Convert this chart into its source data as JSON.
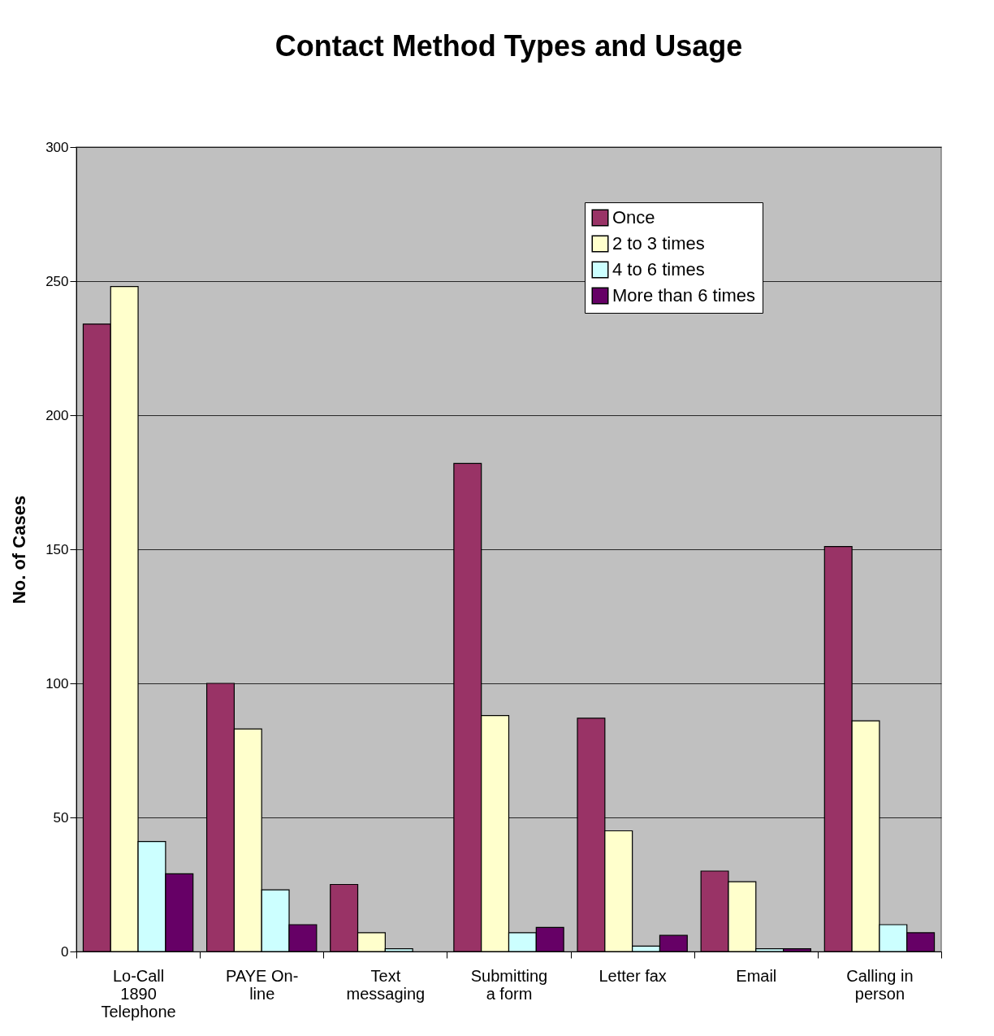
{
  "chart_data": {
    "type": "bar",
    "title": "Contact Method Types and Usage",
    "ylabel": "No. of Cases",
    "categories": [
      "Lo-Call\n1890\nTelephone",
      "PAYE On-\nline",
      "Text\nmessaging",
      "Submitting\na form",
      "Letter fax",
      "Email",
      "Calling in\nperson"
    ],
    "series": [
      {
        "name": "Once",
        "color": "#993366",
        "values": [
          234,
          100,
          25,
          182,
          87,
          30,
          151
        ]
      },
      {
        "name": "2 to 3 times",
        "color": "#ffffcc",
        "values": [
          248,
          83,
          7,
          88,
          45,
          26,
          86
        ]
      },
      {
        "name": "4 to 6 times",
        "color": "#ccffff",
        "values": [
          41,
          23,
          1,
          7,
          2,
          1,
          10
        ]
      },
      {
        "name": "More than 6 times",
        "color": "#660066",
        "values": [
          29,
          10,
          0,
          9,
          6,
          1,
          7
        ]
      }
    ],
    "ylim": [
      0,
      300
    ],
    "yticks": [
      0,
      50,
      100,
      150,
      200,
      250,
      300
    ],
    "grid": "y",
    "legend": "top right"
  }
}
